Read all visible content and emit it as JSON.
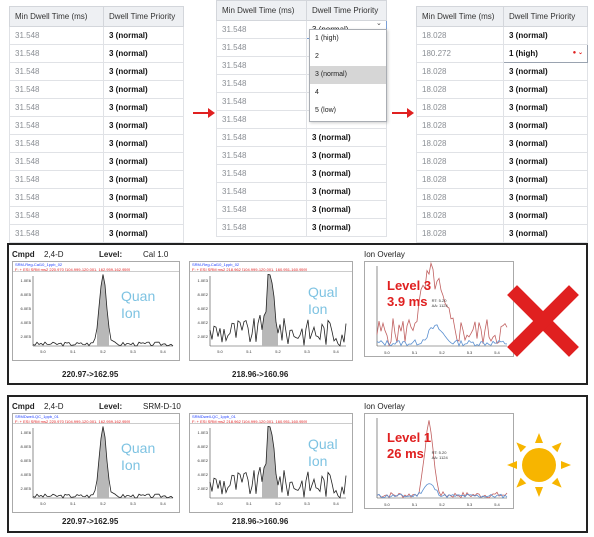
{
  "tables": {
    "headers": [
      "Min Dwell Time (ms)",
      "Dwell Time Priority"
    ],
    "left": {
      "rows": [
        [
          "31.548",
          "3 (normal)"
        ],
        [
          "31.548",
          "3 (normal)"
        ],
        [
          "31.548",
          "3 (normal)"
        ],
        [
          "31.548",
          "3 (normal)"
        ],
        [
          "31.548",
          "3 (normal)"
        ],
        [
          "31.548",
          "3 (normal)"
        ],
        [
          "31.548",
          "3 (normal)"
        ],
        [
          "31.548",
          "3 (normal)"
        ],
        [
          "31.548",
          "3 (normal)"
        ],
        [
          "31.548",
          "3 (normal)"
        ],
        [
          "31.548",
          "3 (normal)"
        ],
        [
          "31.548",
          "3 (normal)"
        ]
      ]
    },
    "middle": {
      "rows": [
        [
          "31.548",
          "3 (normal)"
        ],
        [
          "31.548",
          ""
        ],
        [
          "31.548",
          ""
        ],
        [
          "31.548",
          ""
        ],
        [
          "31.548",
          ""
        ],
        [
          "31.548",
          ""
        ],
        [
          "31.548",
          "3 (normal)"
        ],
        [
          "31.548",
          "3 (normal)"
        ],
        [
          "31.548",
          "3 (normal)"
        ],
        [
          "31.548",
          "3 (normal)"
        ],
        [
          "31.548",
          "3 (normal)"
        ],
        [
          "31.548",
          "3 (normal)"
        ]
      ],
      "dropdown_value": "3 (normal)",
      "dropdown_options": [
        "1 (high)",
        "2",
        "3 (normal)",
        "4",
        "5 (low)"
      ],
      "dropdown_selected": "3 (normal)"
    },
    "right": {
      "rows": [
        [
          "18.028",
          "3 (normal)"
        ],
        [
          "180.272",
          "1 (high)"
        ],
        [
          "18.028",
          "3 (normal)"
        ],
        [
          "18.028",
          "3 (normal)"
        ],
        [
          "18.028",
          "3 (normal)"
        ],
        [
          "18.028",
          "3 (normal)"
        ],
        [
          "18.028",
          "3 (normal)"
        ],
        [
          "18.028",
          "3 (normal)"
        ],
        [
          "18.028",
          "3 (normal)"
        ],
        [
          "18.028",
          "3 (normal)"
        ],
        [
          "18.028",
          "3 (normal)"
        ],
        [
          "18.028",
          "3 (normal)"
        ]
      ],
      "highlight_row": 1
    }
  },
  "panels": [
    {
      "cmpd_label": "Cmpd",
      "cmpd": "2,4-D",
      "level_label": "Level:",
      "level": "Cal 1.0",
      "quan": {
        "header_line1": "SRM-Reg-Cal10_1ppb_02",
        "header_line2": "F: + ESI SRM ms2 220.970 [104.999-120.001, 162.959-162.959]",
        "yticks": [
          "1.0E6",
          "8.0E5",
          "6.0E5",
          "4.0E5",
          "2.0E5"
        ],
        "xticks": [
          "5.0",
          "5.1",
          "5.2",
          "5.3",
          "5.4"
        ],
        "label": [
          "Quan",
          "Ion"
        ],
        "transition": "220.97->162.95"
      },
      "qual": {
        "header_line1": "SRM-Reg-Cal10_1ppb_02",
        "header_line2": "F: + ESI SRM ms2 218.962 [104.999-120.001, 160.951-160.959]",
        "yticks": [
          "1.0E3",
          "8.0E2",
          "6.0E2",
          "4.0E2",
          "2.0E2"
        ],
        "xticks": [
          "5.0",
          "5.1",
          "5.2",
          "5.3",
          "5.4"
        ],
        "label": [
          "Qual",
          "Ion"
        ],
        "transition": "218.96->160.96"
      },
      "overlay": {
        "title": "Ion Overlay",
        "level_text": "Level 3",
        "time_text": "3.9 ms",
        "rt_text": "RT: 5.20",
        "aa_text": "AA: 1124",
        "xticks": [
          "5.0",
          "5.1",
          "5.2",
          "5.3",
          "5.4"
        ]
      },
      "verdict": "x-mark"
    },
    {
      "cmpd_label": "Cmpd",
      "cmpd": "2,4-D",
      "level_label": "Level:",
      "level": "SRM-D-10",
      "quan": {
        "header_line1": "SRMDwell-QC_1ppb_01",
        "header_line2": "F: + ESI SRM ms2 220.970 [104.999-120.001, 162.959-162.959]",
        "yticks": [
          "1.0E6",
          "8.0E5",
          "6.0E5",
          "4.0E5",
          "2.0E5"
        ],
        "xticks": [
          "5.0",
          "5.1",
          "5.2",
          "5.3",
          "5.4"
        ],
        "label": [
          "Quan",
          "Ion"
        ],
        "transition": "220.97->162.95"
      },
      "qual": {
        "header_line1": "SRMDwell-QC_1ppb_01",
        "header_line2": "F: + ESI SRM ms2 218.962 [104.999-120.001, 160.951-160.959]",
        "yticks": [
          "1.0E3",
          "8.0E2",
          "6.0E2",
          "4.0E2",
          "2.0E2"
        ],
        "xticks": [
          "5.0",
          "5.1",
          "5.2",
          "5.3",
          "5.4"
        ],
        "label": [
          "Qual",
          "Ion"
        ],
        "transition": "218.96->160.96"
      },
      "overlay": {
        "title": "Ion Overlay",
        "level_text": "Level 1",
        "time_text": "26 ms",
        "rt_text": "RT: 5.20",
        "aa_text": "AA: 1124",
        "xticks": [
          "5.0",
          "5.1",
          "5.2",
          "5.3",
          "5.4"
        ]
      },
      "verdict": "sun-icon"
    }
  ],
  "colors": {
    "red": "#e02020",
    "sun": "#f7b500",
    "ion_label": "#7ec3e2",
    "peak_fill": "#b8b8b8",
    "overlay_red": "#c06060",
    "overlay_blue": "#5a8fd0"
  }
}
